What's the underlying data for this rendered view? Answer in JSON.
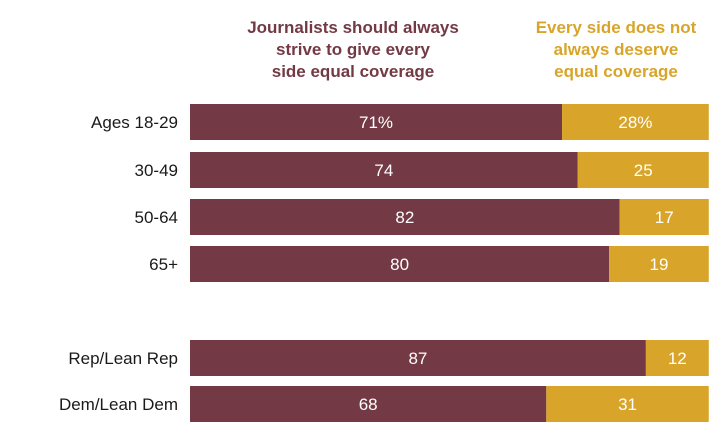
{
  "chart_data": {
    "type": "bar",
    "orientation": "horizontal",
    "stacked": true,
    "xlim": [
      0,
      100
    ],
    "categories": [
      "Ages 18-29",
      "30-49",
      "50-64",
      "65+",
      "Rep/Lean Rep",
      "Dem/Lean Dem"
    ],
    "value_labels": {
      "Journalists should always strive to give every side equal coverage": [
        "71%",
        "74",
        "82",
        "80",
        "87",
        "68"
      ],
      "Every side does not always deserve equal coverage": [
        "28%",
        "25",
        "17",
        "19",
        "12",
        "31"
      ]
    },
    "series": [
      {
        "name": "Journalists should always strive to give every side equal coverage",
        "name_lines": [
          "Journalists should always",
          "strive to give every",
          "side equal coverage"
        ],
        "color": "#733a45",
        "values": [
          71,
          74,
          82,
          80,
          87,
          68
        ]
      },
      {
        "name": "Every side does not always deserve equal coverage",
        "name_lines": [
          "Every side does not",
          "always deserve",
          "equal coverage"
        ],
        "color": "#d8a52a",
        "values": [
          28,
          25,
          17,
          19,
          12,
          31
        ]
      }
    ],
    "legend_position": "top",
    "grid": false
  }
}
